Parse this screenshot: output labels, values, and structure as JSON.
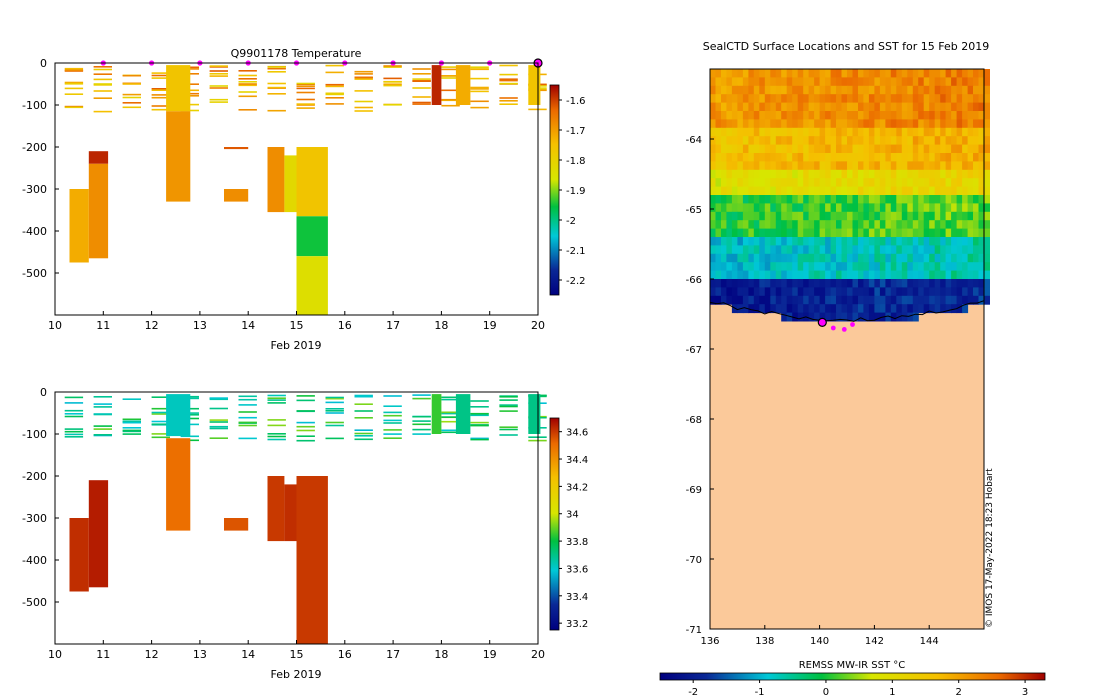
{
  "colors": {
    "ocean_deep": "#0a2896",
    "land": "#fbc99a",
    "profile_marker": "#ff00ff",
    "axis": "#000000"
  },
  "chart_data": [
    {
      "id": "temperature",
      "type": "heatmap",
      "title": "Q9901178  Temperature",
      "xlabel": "Feb 2019",
      "ylabel": "",
      "xlim": [
        10,
        20
      ],
      "ylim": [
        -600,
        0
      ],
      "x_ticks": [
        "10",
        "11",
        "12",
        "13",
        "14",
        "15",
        "16",
        "17",
        "18",
        "19",
        "20"
      ],
      "y_ticks": [
        "0",
        "-100",
        "-200",
        "-300",
        "-400",
        "-500"
      ],
      "colorbar": {
        "range": [
          -2.25,
          -1.55
        ],
        "ticks": [
          "-1.6",
          "-1.7",
          "-1.8",
          "-1.9",
          "-2",
          "-2.1",
          "-2.2"
        ]
      },
      "profile_days": [
        11,
        12,
        13,
        14,
        15,
        16,
        17,
        18,
        19,
        20
      ],
      "blocks": [
        {
          "x": 10.3,
          "w": 0.4,
          "y0": -300,
          "y1": -475,
          "value": -1.72
        },
        {
          "x": 10.7,
          "w": 0.4,
          "y0": -210,
          "y1": -240,
          "value": -1.58
        },
        {
          "x": 10.7,
          "w": 0.4,
          "y0": -240,
          "y1": -465,
          "value": -1.68
        },
        {
          "x": 12.3,
          "w": 0.5,
          "y0": -5,
          "y1": -115,
          "value": -1.76
        },
        {
          "x": 12.3,
          "w": 0.5,
          "y0": -115,
          "y1": -330,
          "value": -1.69
        },
        {
          "x": 13.5,
          "w": 0.5,
          "y0": -300,
          "y1": -330,
          "value": -1.68
        },
        {
          "x": 13.5,
          "w": 0.5,
          "y0": -200,
          "y1": -205,
          "value": -1.62
        },
        {
          "x": 14.4,
          "w": 0.35,
          "y0": -200,
          "y1": -355,
          "value": -1.68
        },
        {
          "x": 14.75,
          "w": 0.25,
          "y0": -220,
          "y1": -355,
          "value": -1.82
        },
        {
          "x": 15.0,
          "w": 0.65,
          "y0": -200,
          "y1": -365,
          "value": -1.76
        },
        {
          "x": 15.0,
          "w": 0.65,
          "y0": -365,
          "y1": -460,
          "value": -1.95
        },
        {
          "x": 15.0,
          "w": 0.65,
          "y0": -460,
          "y1": -600,
          "value": -1.84
        },
        {
          "x": 17.8,
          "w": 0.2,
          "y0": -5,
          "y1": -100,
          "value": -1.58
        },
        {
          "x": 18.3,
          "w": 0.3,
          "y0": -5,
          "y1": -100,
          "value": -1.72
        },
        {
          "x": 19.8,
          "w": 0.25,
          "y0": -5,
          "y1": -100,
          "value": -1.76
        }
      ]
    },
    {
      "id": "salinity",
      "type": "heatmap",
      "title": "",
      "xlabel": "Feb 2019",
      "ylabel": "",
      "xlim": [
        10,
        20
      ],
      "ylim": [
        -600,
        0
      ],
      "x_ticks": [
        "10",
        "11",
        "12",
        "13",
        "14",
        "15",
        "16",
        "17",
        "18",
        "19",
        "20"
      ],
      "y_ticks": [
        "0",
        "-100",
        "-200",
        "-300",
        "-400",
        "-500"
      ],
      "colorbar": {
        "range": [
          33.15,
          34.7
        ],
        "ticks": [
          "34.6",
          "34.4",
          "34.2",
          "34",
          "33.8",
          "33.6",
          "33.4",
          "33.2"
        ]
      },
      "blocks": [
        {
          "x": 10.3,
          "w": 0.4,
          "y0": -300,
          "y1": -475,
          "value": 34.62
        },
        {
          "x": 10.7,
          "w": 0.4,
          "y0": -210,
          "y1": -465,
          "value": 34.65
        },
        {
          "x": 12.3,
          "w": 0.5,
          "y0": -5,
          "y1": -105,
          "value": 33.62
        },
        {
          "x": 12.3,
          "w": 0.5,
          "y0": -110,
          "y1": -330,
          "value": 34.5
        },
        {
          "x": 13.5,
          "w": 0.5,
          "y0": -300,
          "y1": -330,
          "value": 34.55
        },
        {
          "x": 14.4,
          "w": 0.35,
          "y0": -200,
          "y1": -355,
          "value": 34.6
        },
        {
          "x": 14.75,
          "w": 0.25,
          "y0": -220,
          "y1": -355,
          "value": 34.62
        },
        {
          "x": 15.0,
          "w": 0.65,
          "y0": -200,
          "y1": -600,
          "value": 34.6
        },
        {
          "x": 17.8,
          "w": 0.2,
          "y0": -5,
          "y1": -100,
          "value": 33.85
        },
        {
          "x": 18.3,
          "w": 0.3,
          "y0": -5,
          "y1": -100,
          "value": 33.7
        },
        {
          "x": 19.8,
          "w": 0.25,
          "y0": -5,
          "y1": -100,
          "value": 33.7
        }
      ]
    },
    {
      "id": "sst_map",
      "type": "heatmap",
      "title": "SealCTD Surface Locations and SST for 15 Feb 2019",
      "xlabel": "",
      "xlim": [
        136,
        146
      ],
      "ylim": [
        -71,
        -63
      ],
      "x_ticks": [
        "136",
        "138",
        "140",
        "142",
        "144"
      ],
      "y_ticks": [
        "-64",
        "-65",
        "-66",
        "-67",
        "-68",
        "-69",
        "-70",
        "-71"
      ],
      "colorbar": {
        "label": "REMSS MW-IR SST °C",
        "range": [
          -2.5,
          3.3
        ],
        "ticks": [
          "-2",
          "-1",
          "0",
          "1",
          "2",
          "3"
        ]
      },
      "ssts_by_lat": [
        {
          "lat0": -63.0,
          "lat1": -63.8,
          "value": 2.4
        },
        {
          "lat0": -63.8,
          "lat1": -64.4,
          "value": 1.9
        },
        {
          "lat0": -64.4,
          "lat1": -64.8,
          "value": 1.2
        },
        {
          "lat0": -64.8,
          "lat1": -65.3,
          "value": 0.3
        },
        {
          "lat0": -65.3,
          "lat1": -65.9,
          "value": -0.6
        },
        {
          "lat0": -65.9,
          "lat1": -66.6,
          "value": -1.8
        }
      ],
      "seal_locations": [
        {
          "lon": 140.1,
          "lat": -66.62
        },
        {
          "lon": 140.5,
          "lat": -66.7
        },
        {
          "lon": 140.9,
          "lat": -66.72
        },
        {
          "lon": 141.2,
          "lat": -66.65
        }
      ],
      "credit": "© IMOS 17-May-2022 18:23 Hobart"
    }
  ]
}
